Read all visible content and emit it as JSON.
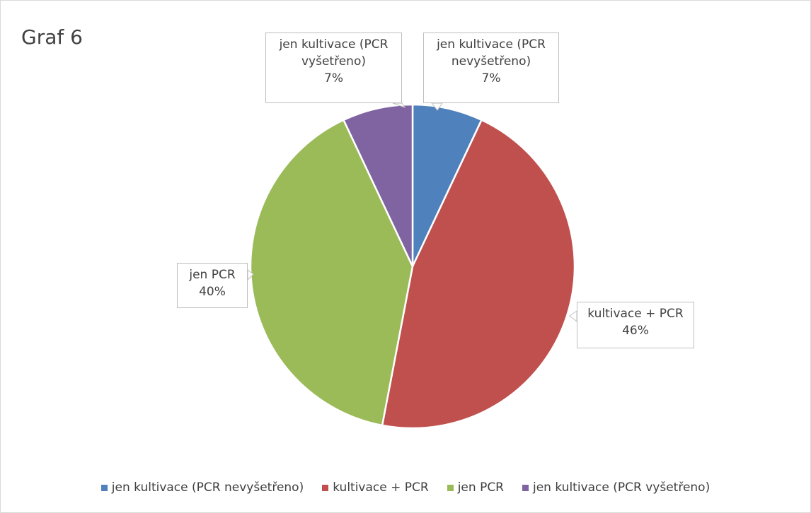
{
  "chart_data": {
    "type": "pie",
    "title": "Graf 6",
    "categories": [
      "jen kultivace (PCR nevyšetřeno)",
      "kultivace + PCR",
      "jen PCR",
      "jen kultivace (PCR vyšetřeno)"
    ],
    "values": [
      7,
      46,
      40,
      7
    ],
    "value_labels": [
      "7%",
      "46%",
      "40%",
      "7%"
    ],
    "colors": [
      "#4f81bd",
      "#c0504d",
      "#9bbb59",
      "#8064a2"
    ],
    "legend": "bottom"
  }
}
